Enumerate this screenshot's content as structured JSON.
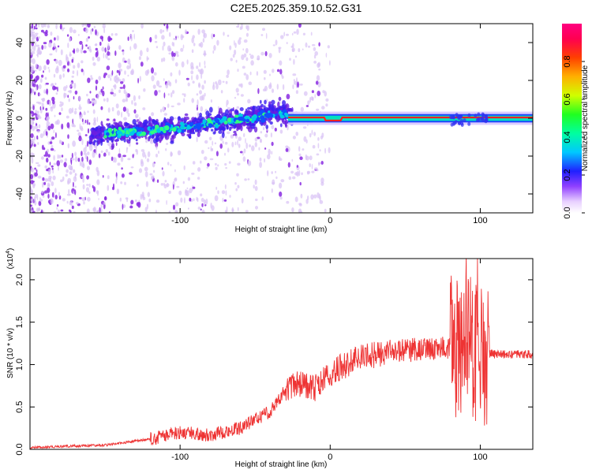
{
  "title": "C2E5.2025.359.10.52.G31",
  "chart_data": [
    {
      "type": "heatmap",
      "description_role": "spectrogram",
      "xlabel": "Height of straight line (km)",
      "ylabel": "Frequency (Hz)",
      "xlim": [
        -200,
        135
      ],
      "ylim": [
        -50,
        50
      ],
      "xticks": [
        -100,
        0,
        100
      ],
      "yticks": [
        -40,
        -20,
        0,
        20,
        40
      ],
      "colorbar": {
        "label": "Normalized spectral amplitude",
        "range": [
          0.0,
          1.0
        ],
        "ticks": [
          "0.0",
          "0.2",
          "0.4",
          "0.6",
          "0.8"
        ]
      },
      "trend": [
        {
          "x": -200,
          "f": -10
        },
        {
          "x": -150,
          "f": -8
        },
        {
          "x": -100,
          "f": -5
        },
        {
          "x": -60,
          "f": -1
        },
        {
          "x": -35,
          "f": 3
        },
        {
          "x": -25,
          "f": 1
        },
        {
          "x": 0,
          "f": 0
        },
        {
          "x": 135,
          "f": 0
        }
      ]
    },
    {
      "type": "line",
      "xlabel": "Height of straight line (km)",
      "ylabel": "SNR (10 * v/v)",
      "yscale_label": "(x10^4)",
      "yscale_base": "(x10",
      "yscale_exp": "4",
      "xlim": [
        -200,
        135
      ],
      "ylim": [
        0,
        2.25
      ],
      "xticks": [
        -100,
        0,
        100
      ],
      "yticks": [
        "0.0",
        "0.5",
        "1.0",
        "1.5",
        "2.0"
      ],
      "series": [
        {
          "name": "SNR",
          "color": "#ee3333",
          "envelope": [
            {
              "x": -200,
              "y": 0.02
            },
            {
              "x": -150,
              "y": 0.05
            },
            {
              "x": -120,
              "y": 0.12
            },
            {
              "x": -100,
              "y": 0.2
            },
            {
              "x": -80,
              "y": 0.17
            },
            {
              "x": -60,
              "y": 0.25
            },
            {
              "x": -40,
              "y": 0.45
            },
            {
              "x": -30,
              "y": 0.7
            },
            {
              "x": -20,
              "y": 0.78
            },
            {
              "x": -10,
              "y": 0.72
            },
            {
              "x": 0,
              "y": 0.9
            },
            {
              "x": 20,
              "y": 1.08
            },
            {
              "x": 40,
              "y": 1.15
            },
            {
              "x": 60,
              "y": 1.18
            },
            {
              "x": 80,
              "y": 1.2
            },
            {
              "x": 90,
              "y": 1.2
            },
            {
              "x": 100,
              "y": 1.15
            },
            {
              "x": 110,
              "y": 1.12
            },
            {
              "x": 135,
              "y": 1.12
            }
          ]
        }
      ]
    }
  ]
}
